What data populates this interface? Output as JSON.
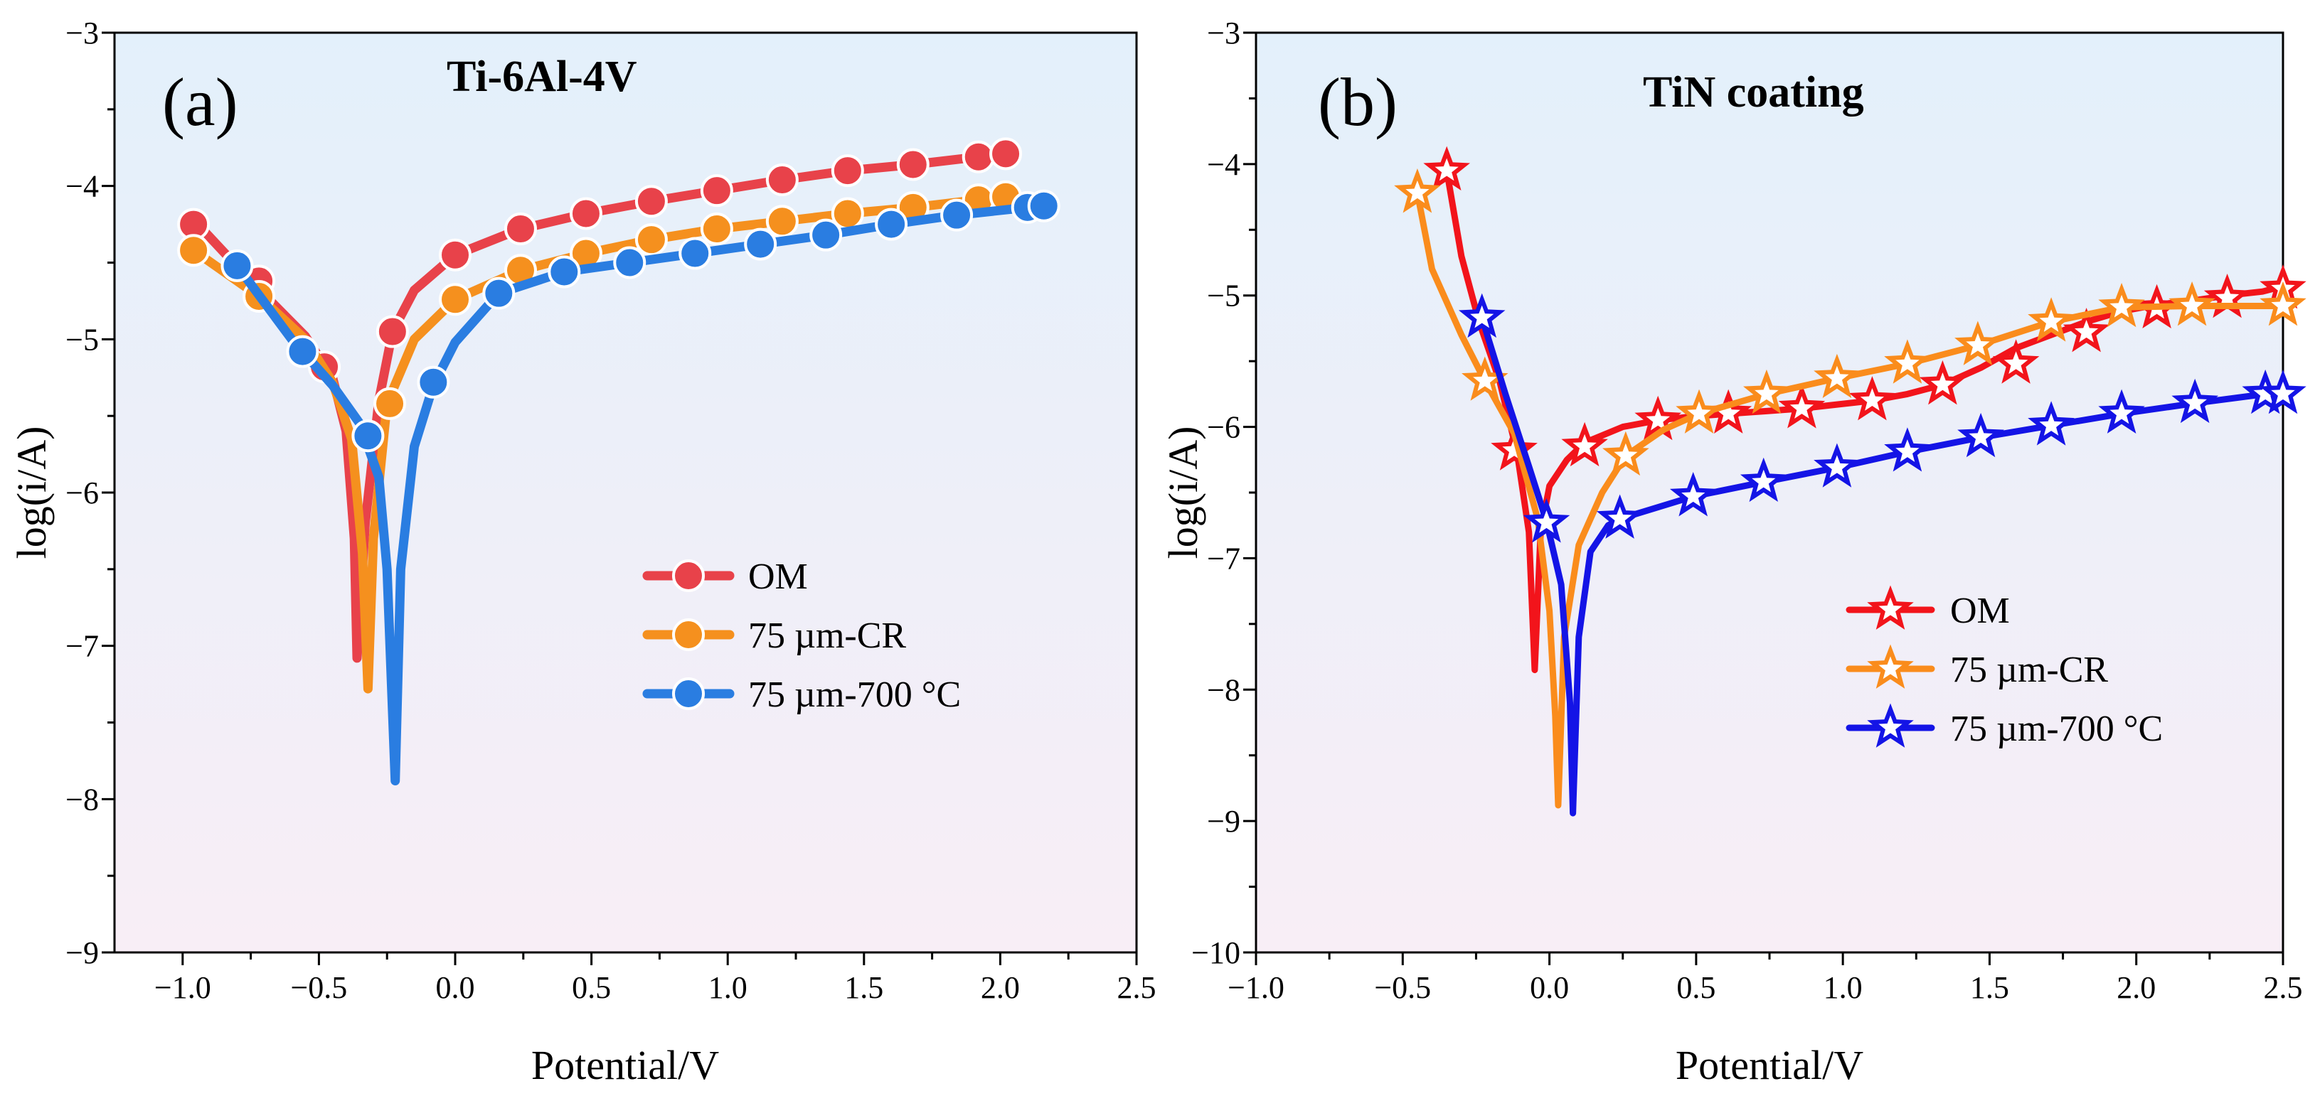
{
  "chart_data": [
    {
      "type": "line",
      "panel_label": "(a)",
      "title": "Ti-6Al-4V",
      "xlabel": "Potential/V",
      "ylabel": "log(i/A)",
      "xlim": [
        -1.25,
        2.5
      ],
      "ylim": [
        -9,
        -3
      ],
      "xticks": [
        -1.0,
        -0.5,
        0.0,
        0.5,
        1.0,
        1.5,
        2.0,
        2.5
      ],
      "xtick_labels": [
        "−1.0",
        "−0.5",
        "0.0",
        "0.5",
        "1.0",
        "1.5",
        "2.0",
        "2.5"
      ],
      "yticks": [
        -9,
        -8,
        -7,
        -6,
        -5,
        -4,
        -3
      ],
      "ytick_labels": [
        "−9",
        "−8",
        "−7",
        "−6",
        "−5",
        "−4",
        "−3"
      ],
      "marker": "sphere",
      "legend_position": "center-right",
      "series": [
        {
          "name": "OM",
          "color": "#e8424a",
          "x": [
            -0.96,
            -0.75,
            -0.55,
            -0.45,
            -0.4,
            -0.37,
            -0.36,
            -0.33,
            -0.28,
            -0.23,
            -0.15,
            0.0,
            0.24,
            0.48,
            0.72,
            0.96,
            1.2,
            1.44,
            1.68,
            1.92,
            2.02
          ],
          "y": [
            -4.22,
            -4.62,
            -4.98,
            -5.25,
            -5.6,
            -6.3,
            -7.08,
            -6.2,
            -5.4,
            -4.95,
            -4.68,
            -4.45,
            -4.28,
            -4.18,
            -4.1,
            -4.03,
            -3.96,
            -3.9,
            -3.86,
            -3.81,
            -3.79
          ],
          "markers_x": [
            -0.96,
            -0.72,
            -0.48,
            -0.23,
            0.0,
            0.24,
            0.48,
            0.72,
            0.96,
            1.2,
            1.44,
            1.68,
            1.92,
            2.02
          ],
          "markers_y": [
            -4.25,
            -4.62,
            -5.18,
            -4.95,
            -4.45,
            -4.28,
            -4.18,
            -4.1,
            -4.03,
            -3.96,
            -3.9,
            -3.86,
            -3.81,
            -3.79
          ]
        },
        {
          "name": "75 µm-CR",
          "color": "#f5901e",
          "x": [
            -0.96,
            -0.72,
            -0.55,
            -0.45,
            -0.38,
            -0.34,
            -0.32,
            -0.3,
            -0.25,
            -0.15,
            0.0,
            0.24,
            0.48,
            0.72,
            0.96,
            1.2,
            1.44,
            1.68,
            1.92,
            2.02
          ],
          "y": [
            -4.42,
            -4.72,
            -5.0,
            -5.28,
            -5.65,
            -6.4,
            -7.28,
            -6.3,
            -5.42,
            -5.0,
            -4.74,
            -4.55,
            -4.44,
            -4.35,
            -4.28,
            -4.23,
            -4.18,
            -4.14,
            -4.09,
            -4.07
          ],
          "markers_x": [
            -0.96,
            -0.72,
            -0.24,
            0.0,
            0.24,
            0.48,
            0.72,
            0.96,
            1.2,
            1.44,
            1.68,
            1.92,
            2.02
          ],
          "markers_y": [
            -4.42,
            -4.72,
            -5.42,
            -4.74,
            -4.55,
            -4.44,
            -4.35,
            -4.28,
            -4.23,
            -4.18,
            -4.14,
            -4.09,
            -4.07
          ]
        },
        {
          "name": "75 µm-700 °C",
          "color": "#2a7de1",
          "x": [
            -0.8,
            -0.6,
            -0.45,
            -0.35,
            -0.28,
            -0.25,
            -0.22,
            -0.2,
            -0.15,
            -0.08,
            0.0,
            0.16,
            0.4,
            0.64,
            0.88,
            1.12,
            1.36,
            1.6,
            1.84,
            2.1,
            2.16
          ],
          "y": [
            -4.52,
            -5.0,
            -5.3,
            -5.55,
            -5.9,
            -6.5,
            -7.88,
            -6.5,
            -5.7,
            -5.3,
            -5.02,
            -4.7,
            -4.56,
            -4.5,
            -4.44,
            -4.38,
            -4.32,
            -4.25,
            -4.19,
            -4.14,
            -4.13
          ],
          "markers_x": [
            -0.8,
            -0.56,
            -0.32,
            -0.08,
            0.16,
            0.4,
            0.64,
            0.88,
            1.12,
            1.36,
            1.6,
            1.84,
            2.1,
            2.16
          ],
          "markers_y": [
            -4.52,
            -5.08,
            -5.63,
            -5.28,
            -4.7,
            -4.56,
            -4.5,
            -4.44,
            -4.38,
            -4.32,
            -4.25,
            -4.19,
            -4.14,
            -4.13
          ]
        }
      ]
    },
    {
      "type": "line",
      "panel_label": "(b)",
      "title": "TiN coating",
      "xlabel": "Potential/V",
      "ylabel": "log(i/A)",
      "xlim": [
        -1.0,
        2.5
      ],
      "ylim": [
        -10,
        -3
      ],
      "xticks": [
        -1.0,
        -0.5,
        0.0,
        0.5,
        1.0,
        1.5,
        2.0,
        2.5
      ],
      "xtick_labels": [
        "−1.0",
        "−0.5",
        "0.0",
        "0.5",
        "1.0",
        "1.5",
        "2.0",
        "2.5"
      ],
      "yticks": [
        -10,
        -9,
        -8,
        -7,
        -6,
        -5,
        -4,
        -3
      ],
      "ytick_labels": [
        "−10",
        "−9",
        "−8",
        "−7",
        "−6",
        "−5",
        "−4",
        "−3"
      ],
      "marker": "star",
      "legend_position": "bottom-right",
      "series": [
        {
          "name": "OM",
          "color": "#f2141b",
          "x": [
            -0.35,
            -0.3,
            -0.24,
            -0.17,
            -0.11,
            -0.07,
            -0.05,
            -0.03,
            0.0,
            0.06,
            0.12,
            0.25,
            0.37,
            0.49,
            0.61,
            0.74,
            0.86,
            0.98,
            1.1,
            1.22,
            1.34,
            1.47,
            1.59,
            1.71,
            1.83,
            1.95,
            2.07,
            2.19,
            2.31,
            2.43,
            2.5
          ],
          "y": [
            -4.05,
            -4.7,
            -5.2,
            -5.65,
            -6.2,
            -6.8,
            -7.85,
            -6.8,
            -6.45,
            -6.25,
            -6.12,
            -6.0,
            -5.95,
            -5.92,
            -5.9,
            -5.88,
            -5.86,
            -5.83,
            -5.8,
            -5.75,
            -5.68,
            -5.55,
            -5.4,
            -5.3,
            -5.2,
            -5.12,
            -5.07,
            -5.04,
            -5.0,
            -4.97,
            -4.93
          ],
          "markers_x": [
            -0.35,
            -0.12,
            0.12,
            0.37,
            0.61,
            0.86,
            1.1,
            1.34,
            1.59,
            1.83,
            2.07,
            2.31,
            2.5
          ],
          "markers_y": [
            -4.05,
            -6.18,
            -6.15,
            -5.95,
            -5.9,
            -5.86,
            -5.8,
            -5.68,
            -5.52,
            -5.28,
            -5.1,
            -5.02,
            -4.95
          ]
        },
        {
          "name": "75 µm-CR",
          "color": "#fa8c1c",
          "x": [
            -0.45,
            -0.4,
            -0.3,
            -0.22,
            -0.12,
            -0.04,
            0.0,
            0.02,
            0.03,
            0.05,
            0.1,
            0.18,
            0.26,
            0.39,
            0.51,
            0.74,
            0.98,
            1.22,
            1.46,
            1.71,
            1.95,
            2.19,
            2.5
          ],
          "y": [
            -4.22,
            -4.8,
            -5.3,
            -5.65,
            -6.05,
            -6.7,
            -7.4,
            -8.2,
            -8.88,
            -7.6,
            -6.9,
            -6.5,
            -6.22,
            -6.02,
            -5.9,
            -5.75,
            -5.63,
            -5.52,
            -5.38,
            -5.2,
            -5.09,
            -5.08,
            -5.08
          ],
          "markers_x": [
            -0.45,
            -0.22,
            0.26,
            0.51,
            0.74,
            0.98,
            1.22,
            1.46,
            1.71,
            1.95,
            2.19,
            2.5
          ],
          "markers_y": [
            -4.22,
            -5.65,
            -6.22,
            -5.9,
            -5.75,
            -5.63,
            -5.52,
            -5.38,
            -5.2,
            -5.09,
            -5.08,
            -5.08
          ]
        },
        {
          "name": "75 µm-700 °C",
          "color": "#1414e6",
          "x": [
            -0.23,
            -0.15,
            -0.07,
            -0.01,
            0.04,
            0.07,
            0.08,
            0.1,
            0.14,
            0.2,
            0.24,
            0.49,
            0.73,
            0.98,
            1.22,
            1.47,
            1.71,
            1.95,
            2.2,
            2.44,
            2.5
          ],
          "y": [
            -5.17,
            -5.75,
            -6.3,
            -6.72,
            -7.2,
            -8.1,
            -8.94,
            -7.6,
            -6.95,
            -6.75,
            -6.7,
            -6.53,
            -6.42,
            -6.31,
            -6.19,
            -6.08,
            -5.99,
            -5.9,
            -5.82,
            -5.75,
            -5.72
          ],
          "markers_x": [
            -0.23,
            -0.01,
            0.24,
            0.49,
            0.73,
            0.98,
            1.22,
            1.47,
            1.71,
            1.95,
            2.2,
            2.44,
            2.5
          ],
          "markers_y": [
            -5.17,
            -6.73,
            -6.7,
            -6.53,
            -6.42,
            -6.31,
            -6.19,
            -6.08,
            -5.99,
            -5.9,
            -5.82,
            -5.75,
            -5.75
          ]
        }
      ]
    }
  ]
}
